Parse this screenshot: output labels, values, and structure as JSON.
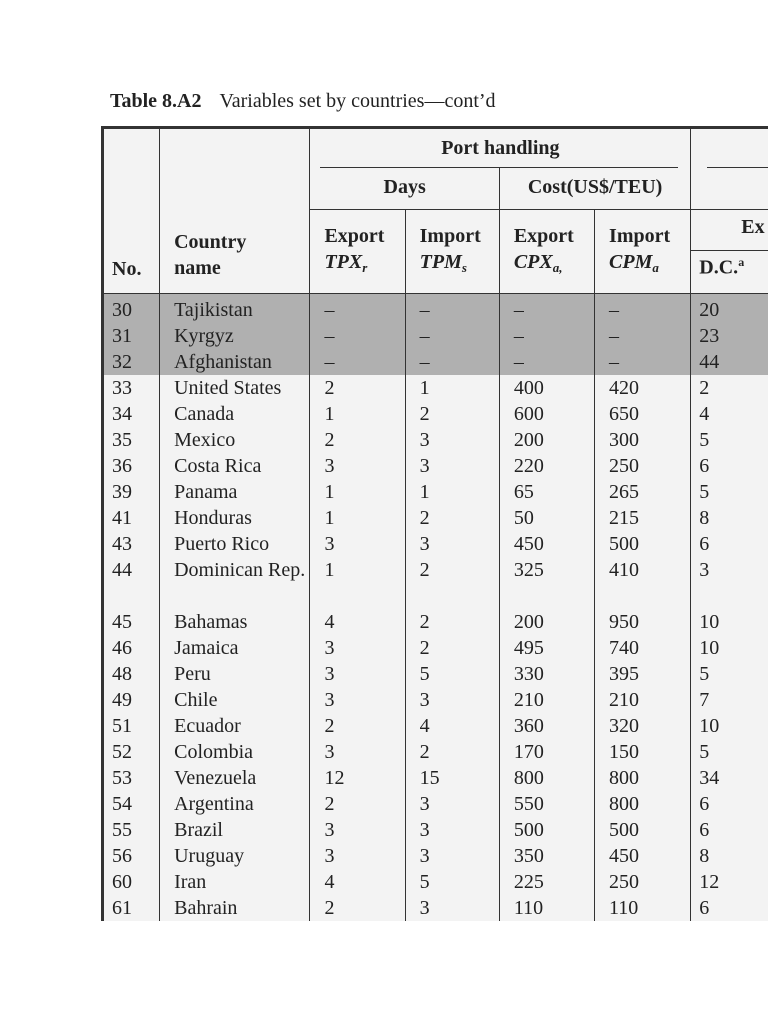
{
  "caption": {
    "label": "Table 8.A2",
    "title": "Variables set by countries—cont’d"
  },
  "headers": {
    "no": "No.",
    "country_1": "Country",
    "country_2": "name",
    "port_handling": "Port handling",
    "days": "Days",
    "cost": "Cost(US$/TEU)",
    "cols": [
      {
        "label": "Export",
        "var": "TPX",
        "sub": "r"
      },
      {
        "label": "Import",
        "var": "TPM",
        "sub": "s"
      },
      {
        "label": "Export",
        "var": "CPX",
        "sub": "a,"
      },
      {
        "label": "Import",
        "var": "CPM",
        "sub": "a"
      }
    ],
    "partial_group": "Ex",
    "dc": "D.C.",
    "dc_sup": "a"
  },
  "highlight_color": "#b0b0b0",
  "rows": [
    [
      "30",
      "Tajikistan",
      "–",
      "–",
      "–",
      "–",
      "20"
    ],
    [
      "31",
      "Kyrgyz",
      "–",
      "–",
      "–",
      "–",
      "23"
    ],
    [
      "32",
      "Afghanistan",
      "–",
      "–",
      "–",
      "–",
      "44"
    ],
    [
      "33",
      "United States",
      "2",
      "1",
      "400",
      "420",
      "2"
    ],
    [
      "34",
      "Canada",
      "1",
      "2",
      "600",
      "650",
      "4"
    ],
    [
      "35",
      "Mexico",
      "2",
      "3",
      "200",
      "300",
      "5"
    ],
    [
      "36",
      "Costa Rica",
      "3",
      "3",
      "220",
      "250",
      "6"
    ],
    [
      "39",
      "Panama",
      "1",
      "1",
      "65",
      "265",
      "5"
    ],
    [
      "41",
      "Honduras",
      "1",
      "2",
      "50",
      "215",
      "8"
    ],
    [
      "43",
      "Puerto Rico",
      "3",
      "3",
      "450",
      "500",
      "6"
    ],
    [
      "44",
      "Dominican Rep.",
      "1",
      "2",
      "325",
      "410",
      "3"
    ],
    [
      "45",
      "Bahamas",
      "4",
      "2",
      "200",
      "950",
      "10"
    ],
    [
      "46",
      "Jamaica",
      "3",
      "2",
      "495",
      "740",
      "10"
    ],
    [
      "48",
      "Peru",
      "3",
      "5",
      "330",
      "395",
      "5"
    ],
    [
      "49",
      "Chile",
      "3",
      "3",
      "210",
      "210",
      "7"
    ],
    [
      "51",
      "Ecuador",
      "2",
      "4",
      "360",
      "320",
      "10"
    ],
    [
      "52",
      "Colombia",
      "3",
      "2",
      "170",
      "150",
      "5"
    ],
    [
      "53",
      "Venezuela",
      "12",
      "15",
      "800",
      "800",
      "34"
    ],
    [
      "54",
      "Argentina",
      "2",
      "3",
      "550",
      "800",
      "6"
    ],
    [
      "55",
      "Brazil",
      "3",
      "3",
      "500",
      "500",
      "6"
    ],
    [
      "56",
      "Uruguay",
      "3",
      "3",
      "350",
      "450",
      "8"
    ],
    [
      "60",
      "Iran",
      "4",
      "5",
      "225",
      "250",
      "12"
    ],
    [
      "61",
      "Bahrain",
      "2",
      "3",
      "110",
      "110",
      "6"
    ]
  ]
}
